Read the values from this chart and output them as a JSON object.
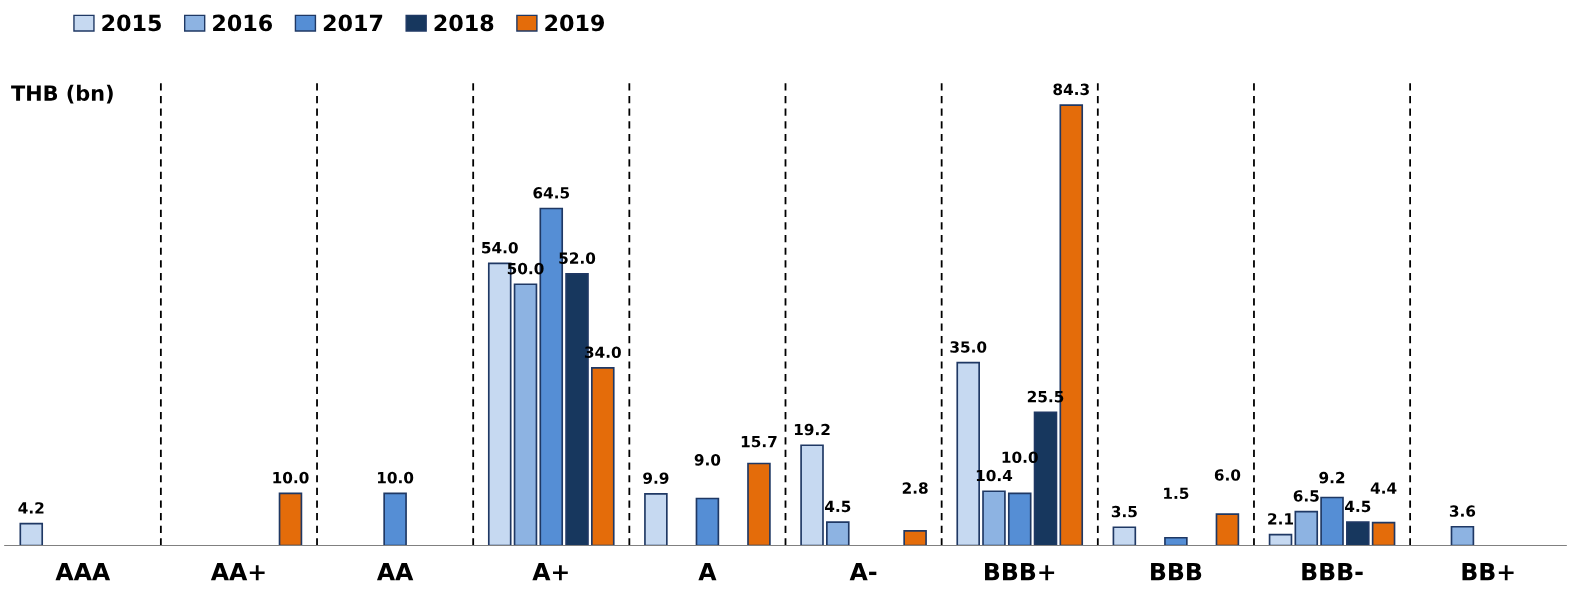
{
  "chart_data": {
    "type": "bar",
    "ylabel": "THB (bn)",
    "categories": [
      "AAA",
      "AA+",
      "AA",
      "A+",
      "A",
      "A-",
      "BBB+",
      "BBB",
      "BBB-",
      "BB+"
    ],
    "series": [
      {
        "name": "2015",
        "color": "#c6d9f1",
        "values": [
          4.2,
          null,
          null,
          54.0,
          9.9,
          19.2,
          35.0,
          3.5,
          2.1,
          null
        ],
        "value_labels": [
          "4.2",
          null,
          null,
          "54.0",
          "9.9",
          "19.2",
          "35.0",
          "3.5",
          "2.1",
          null
        ]
      },
      {
        "name": "2016",
        "color": "#8db3e2",
        "values": [
          null,
          null,
          null,
          50.0,
          null,
          4.5,
          10.4,
          null,
          6.5,
          3.6
        ],
        "value_labels": [
          null,
          null,
          null,
          "50.0",
          null,
          "4.5",
          "10.4",
          null,
          "6.5",
          "3.6"
        ]
      },
      {
        "name": "2017",
        "color": "#558ed5",
        "values": [
          null,
          null,
          10.0,
          64.5,
          9.0,
          null,
          10.0,
          1.5,
          9.2,
          null
        ],
        "value_labels": [
          null,
          null,
          "10.0",
          "64.5",
          "9.0",
          null,
          "10.0",
          "1.5",
          "9.2",
          null
        ]
      },
      {
        "name": "2018",
        "color": "#17375e",
        "values": [
          null,
          null,
          null,
          52.0,
          null,
          null,
          25.5,
          null,
          4.5,
          null
        ],
        "value_labels": [
          null,
          null,
          null,
          "52.0",
          null,
          null,
          "25.5",
          null,
          "4.5",
          null
        ]
      },
      {
        "name": "2019",
        "color": "#e46c0a",
        "values": [
          null,
          10.0,
          null,
          34.0,
          15.7,
          2.8,
          84.3,
          6.0,
          4.4,
          null
        ],
        "value_labels": [
          null,
          "10.0",
          null,
          "34.0",
          "15.7",
          "2.8",
          "84.3",
          "6.0",
          "4.4",
          null
        ]
      }
    ],
    "grid": "x",
    "legend": "top left"
  }
}
